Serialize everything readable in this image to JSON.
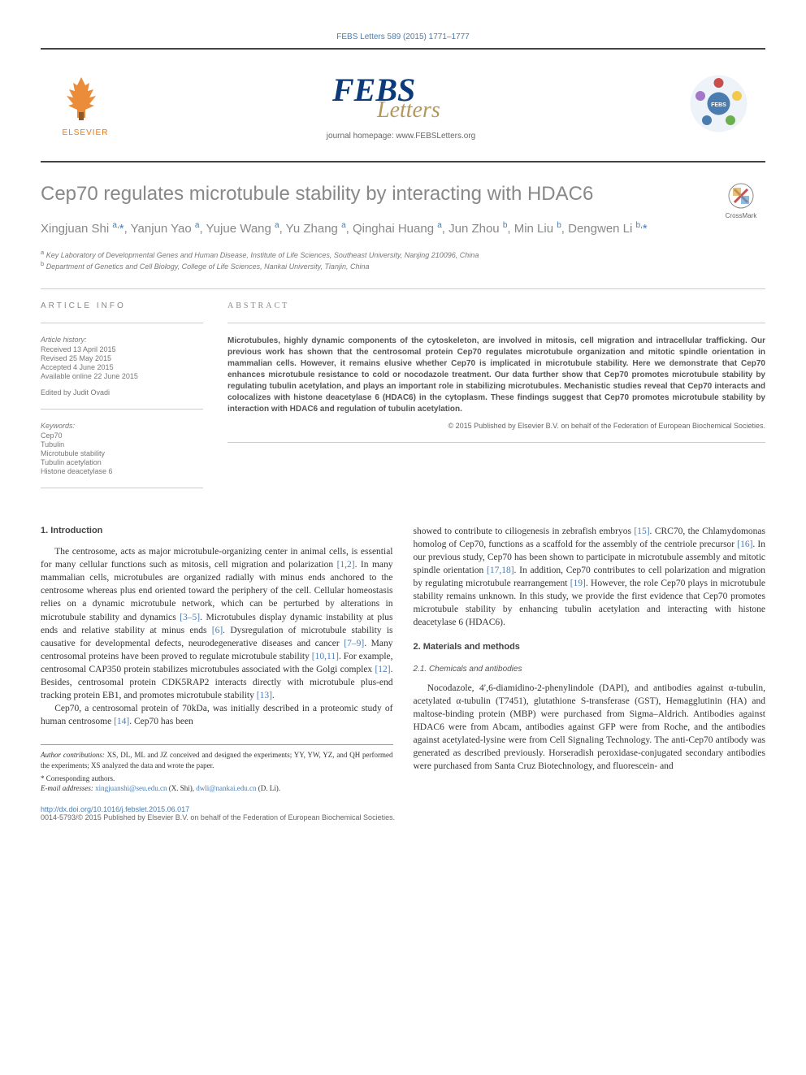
{
  "header": {
    "reference": "FEBS Letters 589 (2015) 1771–1777",
    "elsevier_label": "ELSEVIER",
    "homepage": "journal homepage: www.FEBSLetters.org"
  },
  "logos": {
    "elsevier_color": "#e67817",
    "febs_fill": "#0d3b7a",
    "febs_letters_fill": "#b4975a",
    "badge_outer": "#eef3fa",
    "badge_blue": "#4a7cb0",
    "badge_red": "#c94d4d",
    "badge_green": "#6ab04c",
    "badge_yellow": "#f2c94c"
  },
  "crossmark_label": "CrossMark",
  "title": "Cep70 regulates microtubule stability by interacting with HDAC6",
  "authors_html": "Xingjuan Shi <sup>a,</sup><span class='star'>*</span>, Yanjun Yao <sup>a</sup>, Yujue Wang <sup>a</sup>, Yu Zhang <sup>a</sup>, Qinghai Huang <sup>a</sup>, Jun Zhou <sup>b</sup>, Min Liu <sup>b</sup>, Dengwen Li <sup>b,</sup><span class='star'>*</span>",
  "affiliations": [
    "a Key Laboratory of Developmental Genes and Human Disease, Institute of Life Sciences, Southeast University, Nanjing 210096, China",
    "b Department of Genetics and Cell Biology, College of Life Sciences, Nankai University, Tianjin, China"
  ],
  "article_info": {
    "label": "ARTICLE INFO",
    "history_label": "Article history:",
    "history": [
      "Received 13 April 2015",
      "Revised 25 May 2015",
      "Accepted 4 June 2015",
      "Available online 22 June 2015"
    ],
    "edited_by": "Edited by Judit Ovadi",
    "keywords_label": "Keywords:",
    "keywords": [
      "Cep70",
      "Tubulin",
      "Microtubule stability",
      "Tubulin acetylation",
      "Histone deacetylase 6"
    ]
  },
  "abstract": {
    "label": "ABSTRACT",
    "text": "Microtubules, highly dynamic components of the cytoskeleton, are involved in mitosis, cell migration and intracellular trafficking. Our previous work has shown that the centrosomal protein Cep70 regulates microtubule organization and mitotic spindle orientation in mammalian cells. However, it remains elusive whether Cep70 is implicated in microtubule stability. Here we demonstrate that Cep70 enhances microtubule resistance to cold or nocodazole treatment. Our data further show that Cep70 promotes microtubule stability by regulating tubulin acetylation, and plays an important role in stabilizing microtubules. Mechanistic studies reveal that Cep70 interacts and colocalizes with histone deacetylase 6 (HDAC6) in the cytoplasm. These findings suggest that Cep70 promotes microtubule stability by interaction with HDAC6 and regulation of tubulin acetylation.",
    "copyright": "© 2015  Published by Elsevier B.V. on behalf of the Federation of European Biochemical Societies."
  },
  "body": {
    "intro_heading": "1. Introduction",
    "intro_p1": "The centrosome, acts as major microtubule-organizing center in animal cells, is essential for many cellular functions such as mitosis, cell migration and polarization [1,2]. In many mammalian cells, microtubules are organized radially with minus ends anchored to the centrosome whereas plus end oriented toward the periphery of the cell. Cellular homeostasis relies on a dynamic microtubule network, which can be perturbed by alterations in microtubule stability and dynamics [3–5]. Microtubules display dynamic instability at plus ends and relative stability at minus ends [6]. Dysregulation of microtubule stability is causative for developmental defects, neurodegenerative diseases and cancer [7–9]. Many centrosomal proteins have been proved to regulate microtubule stability [10,11]. For example, centrosomal CAP350 protein stabilizes microtubules associated with the Golgi complex [12]. Besides, centrosomal protein CDK5RAP2 interacts directly with microtubule plus-end tracking protein EB1, and promotes microtubule stability [13].",
    "intro_p2": "Cep70, a centrosomal protein of 70kDa, was initially described in a proteomic study of human centrosome [14]. Cep70 has been",
    "col2_p1": "showed to contribute to ciliogenesis in zebrafish embryos [15]. CRC70, the Chlamydomonas homolog of Cep70, functions as a scaffold for the assembly of the centriole precursor [16]. In our previous study, Cep70 has been shown to participate in microtubule assembly and mitotic spindle orientation [17,18]. In addition, Cep70 contributes to cell polarization and migration by regulating microtubule rearrangement [19]. However, the role Cep70 plays in microtubule stability remains unknown. In this study, we provide the first evidence that Cep70 promotes microtubule stability by enhancing tubulin acetylation and interacting with histone deacetylase 6 (HDAC6).",
    "mm_heading": "2. Materials and methods",
    "mm_sub": "2.1. Chemicals and antibodies",
    "mm_p1": "Nocodazole, 4′,6-diamidino-2-phenylindole (DAPI), and antibodies against α-tubulin, acetylated α-tubulin (T7451), glutathione S-transferase (GST), Hemagglutinin (HA) and maltose-binding protein (MBP) were purchased from Sigma–Aldrich. Antibodies against HDAC6 were from Abcam, antibodies against GFP were from Roche, and the antibodies against acetylated-lysine were from Cell Signaling Technology. The anti-Cep70 antibody was generated as described previously. Horseradish peroxidase-conjugated secondary antibodies were purchased from Santa Cruz Biotechnology, and fluorescein- and"
  },
  "footer": {
    "contrib_label": "Author contributions:",
    "contrib_text": " XS, DL, ML and JZ conceived and designed the experiments; YY, YW, YZ, and QH performed the experiments; XS analyzed the data and wrote the paper.",
    "corr_symbol": "*",
    "corr_text": "Corresponding authors.",
    "email_label": "E-mail addresses:",
    "email1": "xingjuanshi@seu.edu.cn",
    "email1_name": " (X. Shi), ",
    "email2": "dwli@nankai.edu.cn",
    "email2_name": " (D. Li)."
  },
  "page_footer": {
    "doi": "http://dx.doi.org/10.1016/j.febslet.2015.06.017",
    "issn_line": "0014-5793/© 2015  Published by Elsevier B.V. on behalf of the Federation of European Biochemical Societies."
  }
}
